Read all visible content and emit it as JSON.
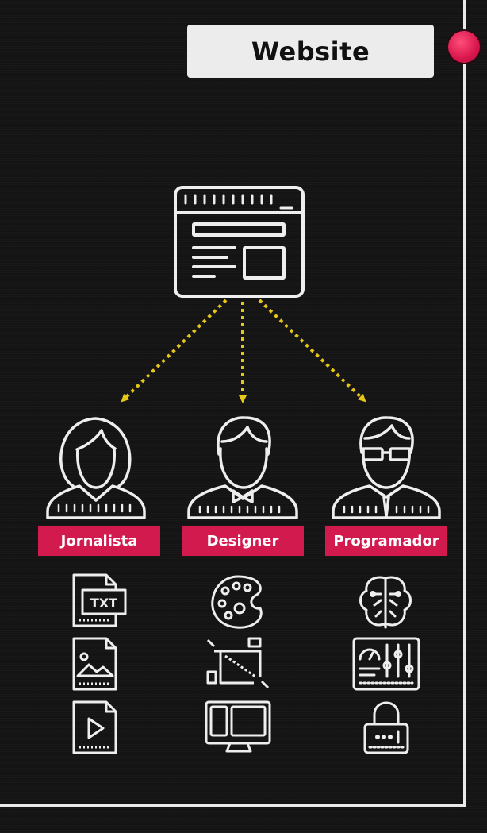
{
  "title": "Website",
  "colors": {
    "background": "#141414",
    "line": "#eeeeee",
    "arrow": "#e6c619",
    "label_bg": "#d21a4f",
    "title_bg": "#ececec",
    "record_dot": "#d8164c"
  },
  "root": {
    "icon": "browser-window-icon"
  },
  "roles": [
    {
      "label": "Jornalista",
      "avatar": "woman-avatar-icon",
      "icons": [
        "txt-file-icon",
        "image-file-icon",
        "video-file-icon"
      ]
    },
    {
      "label": "Designer",
      "avatar": "man-bowtie-avatar-icon",
      "icons": [
        "palette-icon",
        "crop-tool-icon",
        "responsive-devices-icon"
      ]
    },
    {
      "label": "Programador",
      "avatar": "man-glasses-avatar-icon",
      "icons": [
        "brain-circuit-icon",
        "control-panel-icon",
        "password-lock-icon"
      ]
    }
  ]
}
